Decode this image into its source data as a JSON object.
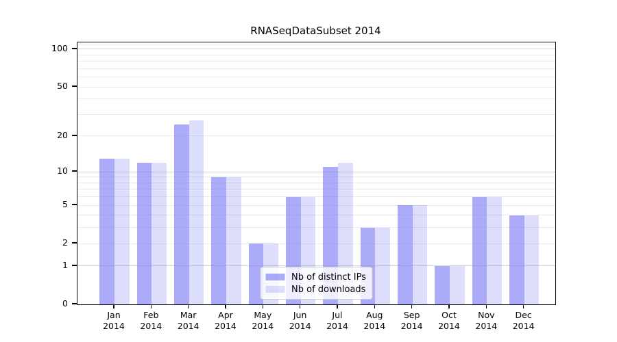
{
  "chart_data": {
    "type": "bar",
    "title": "RNASeqDataSubset 2014",
    "categories": [
      "Jan",
      "Feb",
      "Mar",
      "Apr",
      "May",
      "Jun",
      "Jul",
      "Aug",
      "Sep",
      "Oct",
      "Nov",
      "Dec"
    ],
    "category_year_line": "2014",
    "series": [
      {
        "name": "Nb of distinct IPs",
        "color": "rgba(120,120,245,0.62)",
        "values": [
          13,
          12,
          25,
          9,
          2,
          6,
          11,
          3,
          5,
          1,
          6,
          4
        ]
      },
      {
        "name": "Nb of downloads",
        "color": "rgba(120,120,245,0.25)",
        "values": [
          13,
          12,
          27,
          9,
          2,
          6,
          12,
          3,
          5,
          1,
          6,
          4
        ]
      }
    ],
    "yscale": "log10(value+1)",
    "yticks": [
      0,
      1,
      2,
      5,
      10,
      20,
      50,
      100
    ],
    "ylim": [
      0,
      113
    ],
    "grid": {
      "major_values": [
        1,
        10,
        100
      ],
      "minor_values": [
        2,
        3,
        4,
        5,
        6,
        7,
        8,
        9,
        20,
        30,
        40,
        50,
        60,
        70,
        80,
        90,
        110
      ],
      "major_color": "#d2d2d2",
      "minor_color": "#ebebeb"
    },
    "legend_position": "lower center",
    "xlabel": "",
    "ylabel": ""
  }
}
